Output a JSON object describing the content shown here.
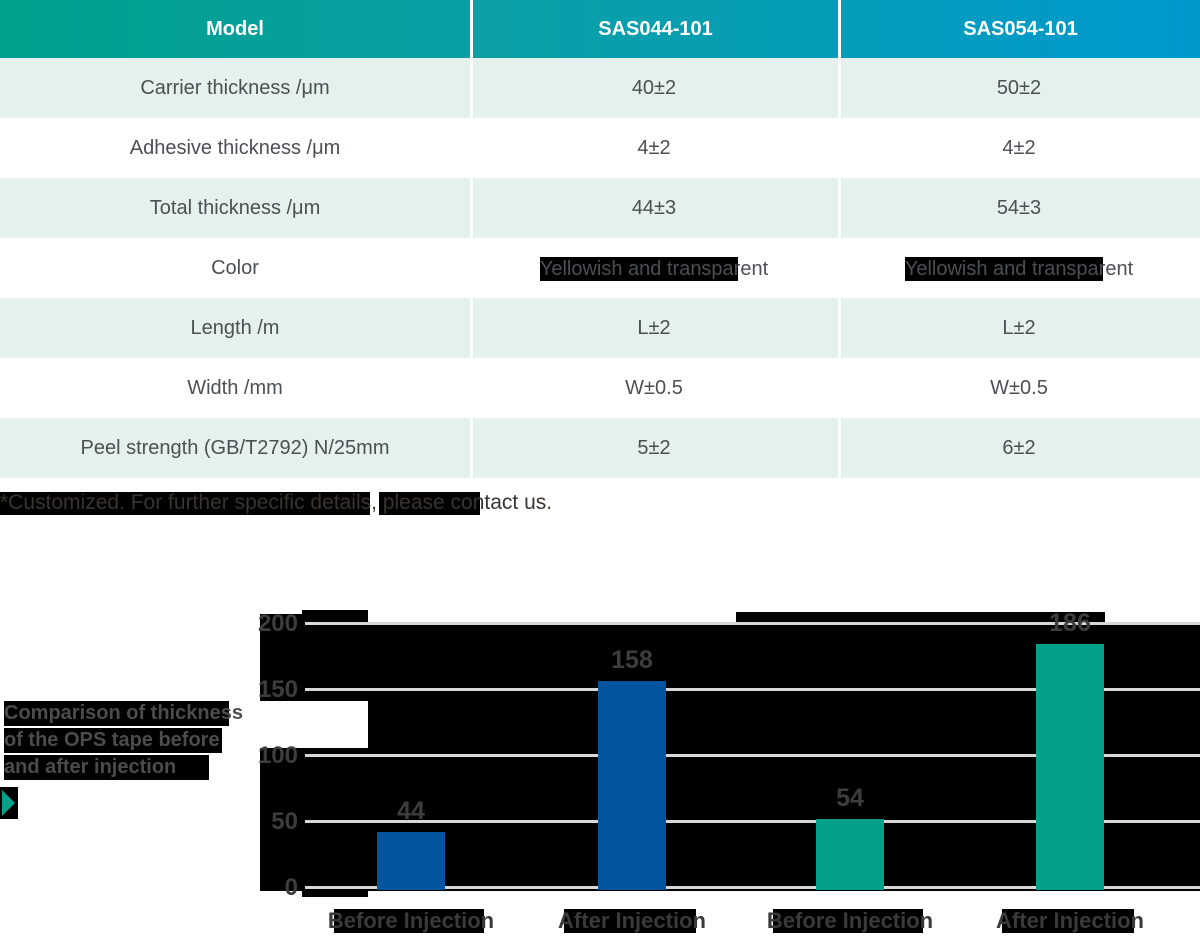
{
  "table": {
    "header": [
      "Model",
      "SAS044-101",
      "SAS054-101"
    ],
    "rows": [
      {
        "label": "Carrier thickness /μm",
        "values": [
          "40±2",
          "50±2"
        ],
        "redacted": false
      },
      {
        "label": "Adhesive thickness /μm",
        "values": [
          "4±2",
          "4±2"
        ],
        "redacted": false
      },
      {
        "label": "Total thickness /μm",
        "values": [
          "44±3",
          "54±3"
        ],
        "redacted": false
      },
      {
        "label": "Color",
        "values": [
          "Yellowish and transparent",
          "Yellowish and transparent"
        ],
        "redacted": true
      },
      {
        "label": "Length /m",
        "values": [
          "L±2",
          "L±2"
        ],
        "redacted": false
      },
      {
        "label": "Width /mm",
        "values": [
          "W±0.5",
          "W±0.5"
        ],
        "redacted": false
      },
      {
        "label": "Peel strength (GB/T2792) N/25mm",
        "values": [
          "5±2",
          "6±2"
        ],
        "redacted": false
      }
    ]
  },
  "note": "*Customized. For further specific details, please contact us.",
  "chart_data": {
    "type": "bar",
    "title": "Comparison of thickness of the OPS tape before and after injection",
    "title_lines": [
      "Comparison of thickness",
      "of the OPS tape before",
      "and after injection"
    ],
    "categories": [
      "Before Injection",
      "After Injection",
      "Before Injection",
      "After Injection"
    ],
    "bars": [
      {
        "category": "Before Injection",
        "value": 44,
        "series": "SAS044-101",
        "color": "#02549e"
      },
      {
        "category": "After Injection",
        "value": 158,
        "series": "SAS044-101",
        "color": "#02549e"
      },
      {
        "category": "Before Injection",
        "value": 54,
        "series": "SAS054-101",
        "color": "#04a18a"
      },
      {
        "category": "After Injection",
        "value": 186,
        "series": "SAS054-101",
        "color": "#04a18a"
      }
    ],
    "ylabel": "",
    "xlabel": "",
    "ylim": [
      0,
      200
    ],
    "yticks": [
      0,
      50,
      100,
      150,
      200
    ],
    "grid": true,
    "plot_background": "#000000",
    "gridline_color": "#d7d7d7"
  },
  "colors": {
    "header_gradient_left": "#00a08e",
    "header_gradient_right": "#0099ce",
    "row_alternate": "#e4f1ed",
    "bar_blue": "#02549e",
    "bar_green": "#04a18a",
    "highlight_box": "#000000",
    "accent_triangle": "#04a18a"
  }
}
